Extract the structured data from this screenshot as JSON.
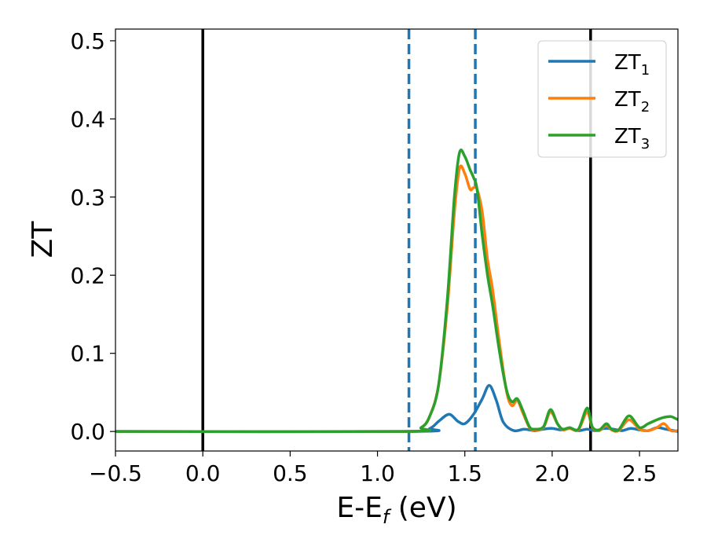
{
  "chart_data": {
    "type": "line",
    "title": "",
    "xlabel": {
      "main": "E-E",
      "sub": "f",
      "suffix": " (eV)"
    },
    "ylabel": "ZT",
    "xlim": [
      -0.5,
      2.72
    ],
    "ylim": [
      -0.025,
      0.515
    ],
    "xticks": [
      -0.5,
      0.0,
      0.5,
      1.0,
      1.5,
      2.0,
      2.5
    ],
    "xtick_labels": [
      "−0.5",
      "0.0",
      "0.5",
      "1.0",
      "1.5",
      "2.0",
      "2.5"
    ],
    "yticks": [
      0.0,
      0.1,
      0.2,
      0.3,
      0.4,
      0.5
    ],
    "ytick_labels": [
      "0.0",
      "0.1",
      "0.2",
      "0.3",
      "0.4",
      "0.5"
    ],
    "grid": false,
    "legend_position": "top-right",
    "vlines": [
      {
        "x": 0.0,
        "style": "solid",
        "color": "#000000"
      },
      {
        "x": 2.22,
        "style": "solid",
        "color": "#000000"
      },
      {
        "x": 1.18,
        "style": "dashed",
        "color": "#1f77b4"
      },
      {
        "x": 1.56,
        "style": "dashed",
        "color": "#1f77b4"
      }
    ],
    "series": [
      {
        "name": "ZT",
        "name_sub": "1",
        "color": "#1f77b4",
        "x": [
          -0.5,
          1.2,
          1.3,
          1.35,
          1.41,
          1.46,
          1.5,
          1.55,
          1.6,
          1.64,
          1.68,
          1.72,
          1.78,
          1.84,
          1.9,
          1.95,
          2.0,
          2.05,
          2.1,
          2.15,
          2.2,
          2.25,
          2.3,
          2.35,
          2.4,
          2.45,
          2.5,
          2.55,
          2.6,
          2.65,
          2.72
        ],
        "y": [
          0.0,
          0.0,
          0.004,
          0.013,
          0.022,
          0.013,
          0.01,
          0.022,
          0.042,
          0.059,
          0.04,
          0.012,
          0.001,
          0.003,
          0.001,
          0.003,
          0.004,
          0.002,
          0.004,
          0.001,
          0.003,
          0.001,
          0.004,
          0.003,
          0.001,
          0.004,
          0.002,
          0.001,
          0.005,
          0.003,
          0.0
        ]
      },
      {
        "name": "ZT",
        "name_sub": "2",
        "color": "#ff7f0e",
        "x": [
          -0.5,
          1.15,
          1.25,
          1.3,
          1.35,
          1.4,
          1.44,
          1.47,
          1.5,
          1.53,
          1.55,
          1.57,
          1.6,
          1.63,
          1.66,
          1.7,
          1.74,
          1.77,
          1.8,
          1.83,
          1.87,
          1.9,
          1.95,
          1.99,
          2.03,
          2.06,
          2.1,
          2.15,
          2.2,
          2.23,
          2.27,
          2.31,
          2.34,
          2.38,
          2.44,
          2.5,
          2.55,
          2.6,
          2.64,
          2.68,
          2.72
        ],
        "y": [
          0.0,
          0.0,
          0.005,
          0.02,
          0.06,
          0.16,
          0.28,
          0.337,
          0.33,
          0.31,
          0.312,
          0.31,
          0.28,
          0.22,
          0.18,
          0.11,
          0.05,
          0.033,
          0.04,
          0.025,
          0.005,
          0.002,
          0.005,
          0.025,
          0.01,
          0.002,
          0.004,
          0.002,
          0.025,
          0.005,
          0.001,
          0.008,
          0.002,
          0.001,
          0.015,
          0.003,
          0.001,
          0.005,
          0.01,
          0.001,
          0.001
        ]
      },
      {
        "name": "ZT",
        "name_sub": "3",
        "color": "#2ca02c",
        "x": [
          -0.5,
          1.15,
          1.25,
          1.3,
          1.35,
          1.4,
          1.44,
          1.47,
          1.5,
          1.53,
          1.55,
          1.57,
          1.6,
          1.63,
          1.66,
          1.7,
          1.74,
          1.77,
          1.8,
          1.83,
          1.87,
          1.9,
          1.95,
          1.99,
          2.03,
          2.06,
          2.1,
          2.15,
          2.2,
          2.23,
          2.27,
          2.31,
          2.34,
          2.38,
          2.44,
          2.5,
          2.55,
          2.6,
          2.64,
          2.68,
          2.72
        ],
        "y": [
          0.0,
          0.0,
          0.005,
          0.02,
          0.06,
          0.17,
          0.3,
          0.357,
          0.352,
          0.335,
          0.325,
          0.31,
          0.25,
          0.2,
          0.16,
          0.1,
          0.052,
          0.038,
          0.042,
          0.028,
          0.006,
          0.003,
          0.006,
          0.028,
          0.01,
          0.003,
          0.005,
          0.003,
          0.03,
          0.006,
          0.002,
          0.01,
          0.003,
          0.002,
          0.02,
          0.005,
          0.01,
          0.015,
          0.018,
          0.019,
          0.015
        ]
      }
    ]
  }
}
